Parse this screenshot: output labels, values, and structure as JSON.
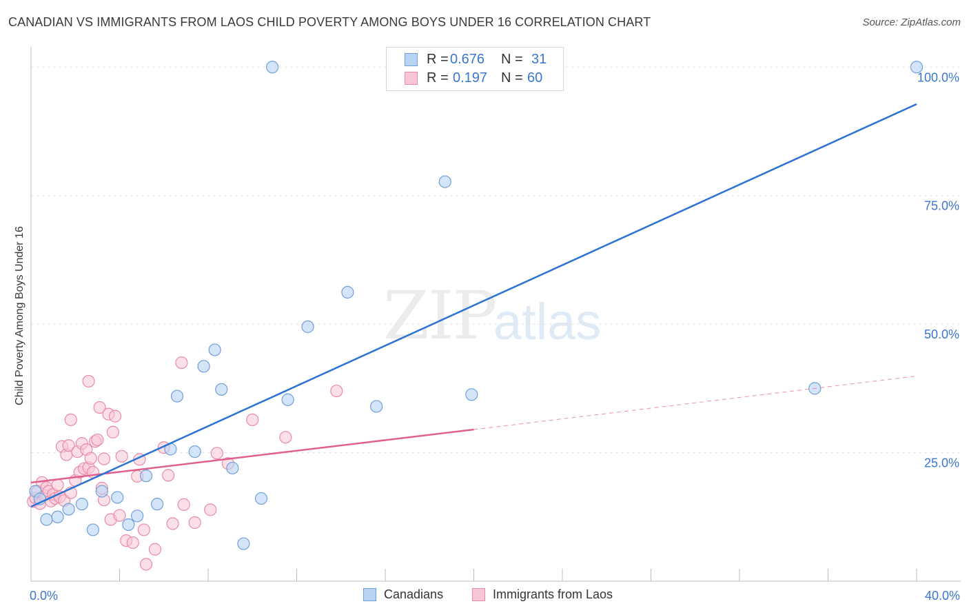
{
  "title": "CANADIAN VS IMMIGRANTS FROM LAOS CHILD POVERTY AMONG BOYS UNDER 16 CORRELATION CHART",
  "source": "Source: ZipAtlas.com",
  "legend_top": {
    "rows": [
      {
        "r_label": "R =",
        "r_value": "0.676",
        "n_label": "N =",
        "n_value": "31"
      },
      {
        "r_label": "R =",
        "r_value": "0.197",
        "n_label": "N =",
        "n_value": "60"
      }
    ]
  },
  "watermark": {
    "zip": "ZIP",
    "atlas": "atlas"
  },
  "colors": {
    "canadians_fill": "#b9d3f5",
    "canadians_stroke": "#6e9fd8",
    "canadians_line": "#2a72d4",
    "laos_fill": "#f8c6d6",
    "laos_stroke": "#e88aa9",
    "laos_line": "#e0608d",
    "axis_text": "#3a76d0",
    "grid": "#e4e4e4"
  },
  "chart_data": {
    "type": "scatter",
    "title": "CANADIAN VS IMMIGRANTS FROM LAOS CHILD POVERTY AMONG BOYS UNDER 16 CORRELATION CHART",
    "xlabel": "",
    "ylabel": "Child Poverty Among Boys Under 16",
    "xlim": [
      0,
      40
    ],
    "ylim": [
      0,
      105
    ],
    "x_tick_labels": [
      "0.0%",
      "40.0%"
    ],
    "y_ticks": [
      25,
      50,
      75,
      100
    ],
    "y_tick_labels": [
      "25.0%",
      "50.0%",
      "75.0%",
      "100.0%"
    ],
    "grid": true,
    "legend_position": "bottom",
    "series": [
      {
        "name": "Canadians",
        "r": 0.676,
        "n": 31,
        "points": [
          [
            0.2,
            17.5
          ],
          [
            0.4,
            16
          ],
          [
            0.7,
            12
          ],
          [
            1.2,
            12.5
          ],
          [
            1.7,
            14
          ],
          [
            2.3,
            15
          ],
          [
            2.8,
            10
          ],
          [
            3.2,
            17.5
          ],
          [
            3.9,
            16.3
          ],
          [
            4.4,
            11
          ],
          [
            4.8,
            12.7
          ],
          [
            5.2,
            20.5
          ],
          [
            5.7,
            15
          ],
          [
            6.3,
            25.7
          ],
          [
            6.6,
            36
          ],
          [
            7.4,
            25.2
          ],
          [
            7.8,
            41.8
          ],
          [
            8.3,
            45
          ],
          [
            8.6,
            37.3
          ],
          [
            9.1,
            22
          ],
          [
            9.6,
            7.3
          ],
          [
            10.4,
            16.1
          ],
          [
            10.9,
            100
          ],
          [
            11.6,
            35.3
          ],
          [
            12.5,
            49.5
          ],
          [
            14.3,
            56.2
          ],
          [
            15.6,
            34
          ],
          [
            18.7,
            77.7
          ],
          [
            19.9,
            36.3
          ],
          [
            35.4,
            37.5
          ],
          [
            40,
            100
          ]
        ],
        "trend": {
          "x": [
            0,
            40
          ],
          "y": [
            14.5,
            92.8
          ]
        }
      },
      {
        "name": "Immigrants from Laos",
        "r": 0.197,
        "n": 60,
        "points": [
          [
            0.1,
            15.5
          ],
          [
            0.2,
            16.2
          ],
          [
            0.3,
            17.5
          ],
          [
            0.4,
            15.1
          ],
          [
            0.5,
            19.2
          ],
          [
            0.6,
            16.7
          ],
          [
            0.7,
            18.2
          ],
          [
            0.8,
            17.5
          ],
          [
            0.9,
            15.6
          ],
          [
            1.0,
            16.9
          ],
          [
            1.1,
            16.1
          ],
          [
            1.2,
            18.7
          ],
          [
            1.3,
            16.4
          ],
          [
            1.4,
            26.2
          ],
          [
            1.5,
            15.7
          ],
          [
            1.6,
            24.6
          ],
          [
            1.7,
            26.4
          ],
          [
            1.8,
            17.2
          ],
          [
            1.8,
            31.4
          ],
          [
            2.0,
            19.6
          ],
          [
            2.1,
            25.2
          ],
          [
            2.2,
            21.2
          ],
          [
            2.3,
            26.8
          ],
          [
            2.4,
            21.9
          ],
          [
            2.5,
            25.6
          ],
          [
            2.6,
            22.1
          ],
          [
            2.7,
            23.9
          ],
          [
            2.6,
            38.9
          ],
          [
            2.8,
            21.2
          ],
          [
            2.9,
            27.2
          ],
          [
            3.0,
            27.5
          ],
          [
            3.1,
            33.8
          ],
          [
            3.2,
            18.1
          ],
          [
            3.3,
            23.8
          ],
          [
            3.3,
            15.8
          ],
          [
            3.5,
            32.5
          ],
          [
            3.6,
            12
          ],
          [
            3.7,
            29
          ],
          [
            3.8,
            32.1
          ],
          [
            4.0,
            12.8
          ],
          [
            4.1,
            24.3
          ],
          [
            4.3,
            7.9
          ],
          [
            4.6,
            7.5
          ],
          [
            4.8,
            20.4
          ],
          [
            4.9,
            23.7
          ],
          [
            5.1,
            10
          ],
          [
            5.2,
            3.3
          ],
          [
            5.6,
            6.2
          ],
          [
            6.0,
            26
          ],
          [
            6.2,
            20.6
          ],
          [
            6.4,
            11.2
          ],
          [
            6.8,
            42.5
          ],
          [
            6.9,
            14.9
          ],
          [
            7.4,
            11.4
          ],
          [
            8.1,
            13.9
          ],
          [
            8.4,
            24.9
          ],
          [
            8.9,
            22.9
          ],
          [
            10.0,
            31.4
          ],
          [
            11.5,
            28
          ],
          [
            13.8,
            37
          ]
        ],
        "trend": {
          "x": [
            0,
            20
          ],
          "y": [
            19.2,
            29.5
          ]
        },
        "trend_dashed": {
          "x": [
            20,
            40
          ],
          "y": [
            29.5,
            39.9
          ]
        }
      }
    ]
  }
}
